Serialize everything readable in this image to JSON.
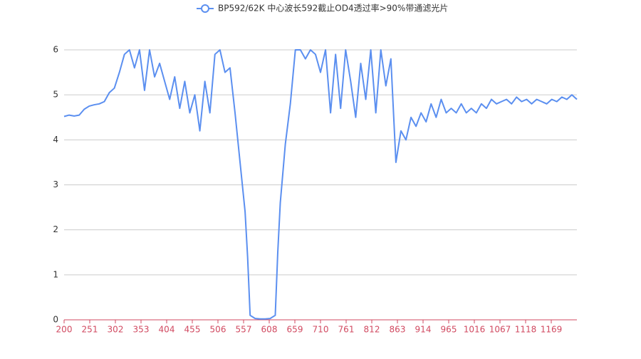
{
  "chart_data": {
    "type": "line",
    "legend": "BP592/62K 中心波长592截止OD4透过率>90%带通滤光片",
    "series": [
      {
        "name": "BP592/62K 中心波长592截止OD4透过率>90%带通滤光片",
        "color": "#5b8ff0",
        "x": [
          200,
          210,
          220,
          230,
          240,
          250,
          260,
          270,
          280,
          290,
          300,
          310,
          320,
          330,
          340,
          350,
          360,
          370,
          380,
          390,
          400,
          410,
          420,
          430,
          440,
          450,
          460,
          470,
          480,
          490,
          500,
          510,
          520,
          530,
          540,
          550,
          560,
          565,
          570,
          580,
          590,
          600,
          610,
          620,
          625,
          630,
          640,
          650,
          660,
          670,
          680,
          690,
          700,
          710,
          720,
          730,
          740,
          750,
          760,
          770,
          780,
          790,
          800,
          810,
          820,
          830,
          840,
          850,
          860,
          870,
          880,
          890,
          900,
          910,
          920,
          930,
          940,
          950,
          960,
          970,
          980,
          990,
          1000,
          1010,
          1020,
          1030,
          1040,
          1050,
          1060,
          1070,
          1080,
          1090,
          1100,
          1110,
          1120,
          1130,
          1140,
          1150,
          1160,
          1170,
          1180,
          1190,
          1200,
          1210,
          1220
        ],
        "values": [
          4.52,
          4.55,
          4.53,
          4.55,
          4.68,
          4.75,
          4.78,
          4.8,
          4.85,
          5.05,
          5.15,
          5.5,
          5.9,
          6,
          5.6,
          6,
          5.1,
          6,
          5.4,
          5.7,
          5.3,
          4.9,
          5.4,
          4.7,
          5.3,
          4.6,
          5.0,
          4.2,
          5.3,
          4.6,
          5.9,
          6,
          5.5,
          5.6,
          4.6,
          3.5,
          2.4,
          1.4,
          0.1,
          0.03,
          0.02,
          0.02,
          0.03,
          0.1,
          1.5,
          2.6,
          3.9,
          4.8,
          6,
          6,
          5.8,
          6,
          5.9,
          5.5,
          6,
          4.6,
          5.9,
          4.7,
          6,
          5.3,
          4.5,
          5.7,
          4.9,
          6,
          4.6,
          6,
          5.2,
          5.8,
          3.5,
          4.2,
          4.0,
          4.5,
          4.3,
          4.6,
          4.4,
          4.8,
          4.5,
          4.9,
          4.6,
          4.7,
          4.6,
          4.8,
          4.6,
          4.7,
          4.6,
          4.8,
          4.7,
          4.9,
          4.8,
          4.85,
          4.9,
          4.8,
          4.95,
          4.85,
          4.9,
          4.8,
          4.9,
          4.85,
          4.8,
          4.9,
          4.85,
          4.95,
          4.9,
          5.0,
          4.9
        ]
      }
    ],
    "xlim": [
      200,
      1220
    ],
    "xticks": [
      200,
      251,
      302,
      353,
      404,
      455,
      506,
      557,
      608,
      659,
      710,
      761,
      812,
      863,
      914,
      965,
      1016,
      1067,
      1118,
      1169
    ],
    "ylim": [
      0,
      6
    ],
    "yticks": [
      0,
      1,
      2,
      3,
      4,
      5,
      6
    ],
    "grid": true
  }
}
